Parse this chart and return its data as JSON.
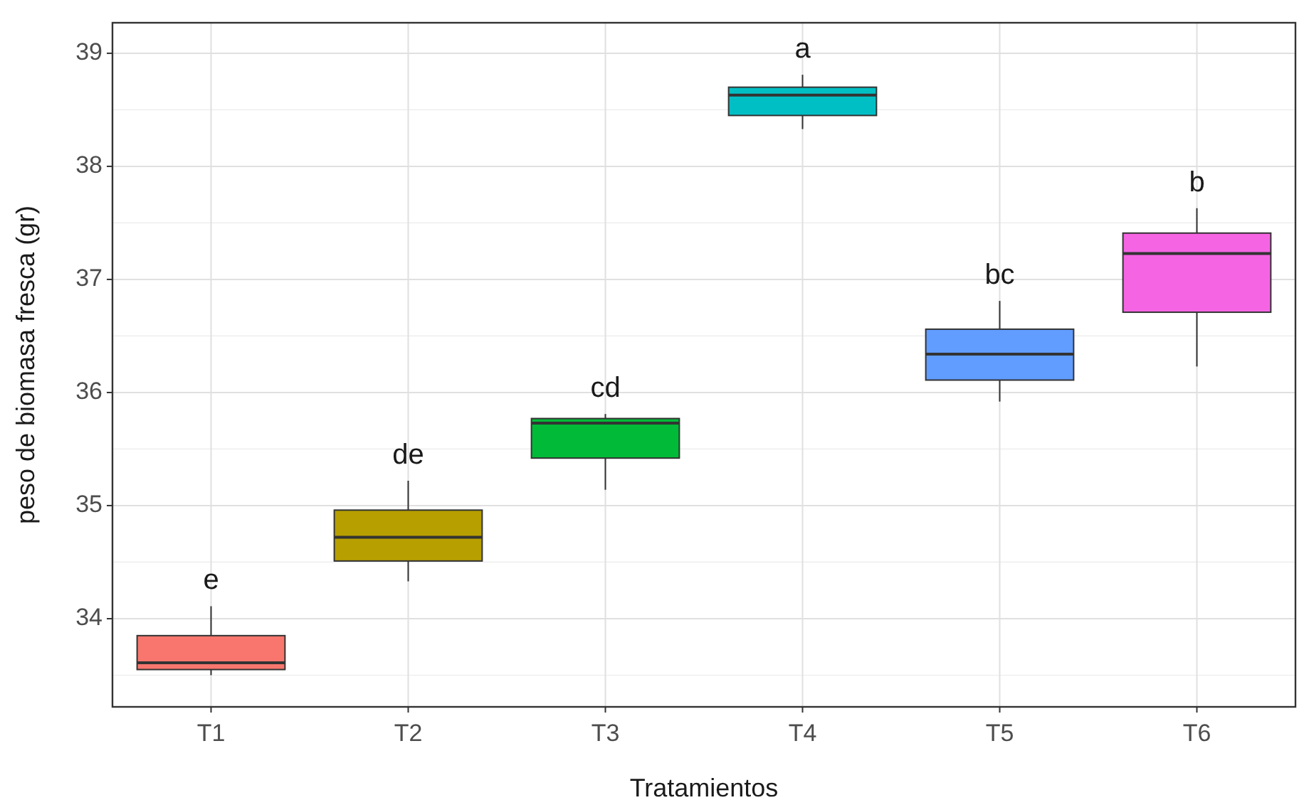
{
  "chart_data": {
    "type": "box",
    "xlabel": "Tratamientos",
    "ylabel": "peso de biomasa fresca (gr)",
    "categories": [
      "T1",
      "T2",
      "T3",
      "T4",
      "T5",
      "T6"
    ],
    "colors": [
      "#f8766d",
      "#b79f00",
      "#00ba38",
      "#00bfc4",
      "#619cff",
      "#f564e3"
    ],
    "boxes": [
      {
        "low": 33.5,
        "q1": 33.55,
        "median": 33.61,
        "q3": 33.85,
        "high": 34.11
      },
      {
        "low": 34.33,
        "q1": 34.51,
        "median": 34.72,
        "q3": 34.96,
        "high": 35.22
      },
      {
        "low": 35.14,
        "q1": 35.42,
        "median": 35.73,
        "q3": 35.77,
        "high": 35.81
      },
      {
        "low": 38.33,
        "q1": 38.45,
        "median": 38.63,
        "q3": 38.7,
        "high": 38.81
      },
      {
        "low": 35.92,
        "q1": 36.11,
        "median": 36.34,
        "q3": 36.56,
        "high": 36.81
      },
      {
        "low": 36.23,
        "q1": 36.71,
        "median": 37.23,
        "q3": 37.41,
        "high": 37.63
      }
    ],
    "annotations": [
      "e",
      "de",
      "cd",
      "a",
      "bc",
      "b"
    ],
    "ylim": [
      33.22,
      39.27
    ],
    "yticks": [
      34,
      35,
      36,
      37,
      38,
      39
    ],
    "grid": true
  }
}
